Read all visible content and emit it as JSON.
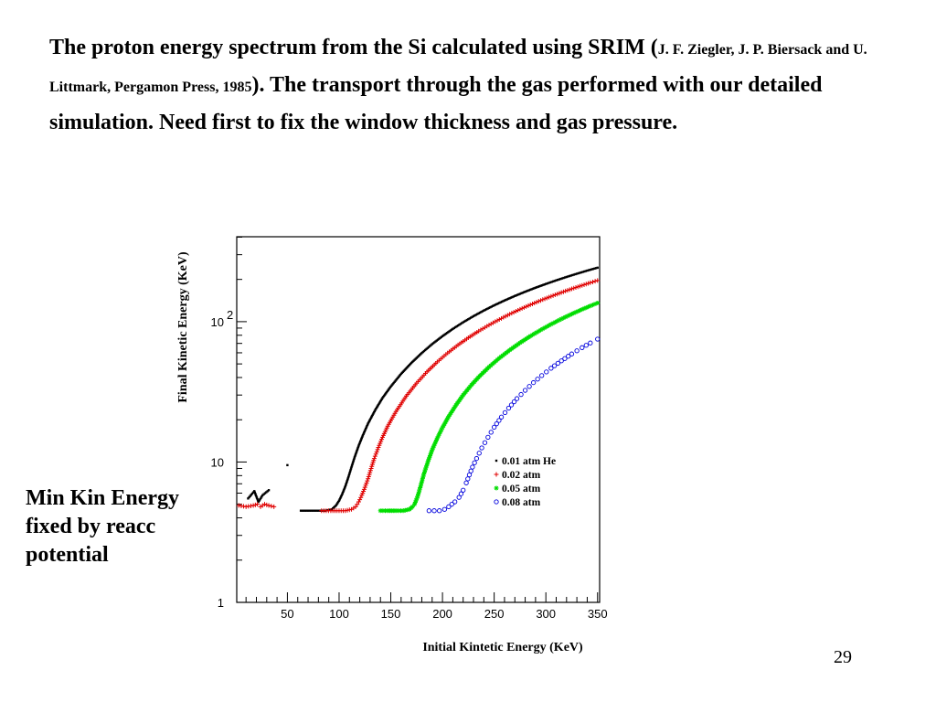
{
  "slide": {
    "title_part1": "The proton energy spectrum from the Si calculated using SRIM (",
    "title_ref": "J. F. Ziegler, J. P. Biersack and U. Littmark, Pergamon Press, 1985",
    "title_part2": "). The transport through the gas performed with our detailed simulation.  Need first to fix the window thickness and gas pressure.",
    "side_note": "Min Kin Energy fixed by reacc potential",
    "page_number": "29"
  },
  "chart_data": {
    "type": "scatter",
    "xlabel": "Initial Kintetic Energy (KeV)",
    "ylabel": "Final Kinetic Energy (KeV)",
    "xlim": [
      0,
      350
    ],
    "ylim": [
      1,
      400
    ],
    "yscale": "log",
    "x_ticks": [
      50,
      100,
      150,
      200,
      250,
      300,
      350
    ],
    "y_ticks": [
      {
        "value": 1,
        "base": "1",
        "exp": ""
      },
      {
        "value": 10,
        "base": "10",
        "exp": ""
      },
      {
        "value": 100,
        "base": "10",
        "exp": "2"
      }
    ],
    "legend_position": "right-center",
    "series": [
      {
        "name": "0.01 atm He",
        "marker": "dot",
        "color": "#000000",
        "points": [
          [
            12,
            5.5
          ],
          [
            18,
            6.2
          ],
          [
            22,
            5.2
          ],
          [
            26,
            5.8
          ],
          [
            32,
            6.3
          ],
          [
            50,
            9.5
          ],
          [
            63,
            4.5
          ],
          [
            70,
            4.5
          ],
          [
            80,
            4.5
          ],
          [
            87,
            4.5
          ],
          [
            93,
            4.6
          ],
          [
            97,
            4.9
          ],
          [
            100,
            5.3
          ],
          [
            103,
            5.9
          ],
          [
            106,
            6.7
          ],
          [
            109,
            7.8
          ],
          [
            112,
            9.2
          ],
          [
            115,
            10.8
          ],
          [
            119,
            13.1
          ],
          [
            123,
            15.5
          ],
          [
            128,
            18.8
          ],
          [
            135,
            23.5
          ],
          [
            142,
            28.6
          ],
          [
            150,
            34.5
          ],
          [
            160,
            42.5
          ],
          [
            170,
            50.9
          ],
          [
            180,
            59.8
          ],
          [
            190,
            69.2
          ],
          [
            200,
            78.8
          ],
          [
            210,
            88.8
          ],
          [
            220,
            99
          ],
          [
            230,
            109.4
          ],
          [
            240,
            120
          ],
          [
            250,
            130.7
          ],
          [
            260,
            141.5
          ],
          [
            270,
            152.4
          ],
          [
            280,
            163.4
          ],
          [
            290,
            174.5
          ],
          [
            300,
            185.6
          ],
          [
            310,
            196.9
          ],
          [
            320,
            208.2
          ],
          [
            330,
            219.5
          ],
          [
            340,
            231
          ],
          [
            350,
            242.4
          ]
        ]
      },
      {
        "name": "0.02 atm",
        "marker": "plus",
        "color": "#e00000",
        "points": [
          [
            3,
            4.9
          ],
          [
            10,
            4.8
          ],
          [
            17,
            4.9
          ],
          [
            21,
            5.0
          ],
          [
            24,
            4.8
          ],
          [
            28,
            5.0
          ],
          [
            32,
            4.9
          ],
          [
            37,
            4.8
          ],
          [
            83,
            4.5
          ],
          [
            92,
            4.5
          ],
          [
            100,
            4.5
          ],
          [
            106,
            4.5
          ],
          [
            112,
            4.6
          ],
          [
            116,
            4.8
          ],
          [
            119,
            5.2
          ],
          [
            122,
            5.8
          ],
          [
            125,
            6.6
          ],
          [
            128,
            7.6
          ],
          [
            131,
            9.0
          ],
          [
            134,
            10.6
          ],
          [
            138,
            12.7
          ],
          [
            142,
            15.0
          ],
          [
            147,
            18.0
          ],
          [
            155,
            22.9
          ],
          [
            165,
            29.5
          ],
          [
            175,
            36.5
          ],
          [
            185,
            43.9
          ],
          [
            195,
            51.7
          ],
          [
            205,
            59.8
          ],
          [
            215,
            68.2
          ],
          [
            225,
            76.8
          ],
          [
            235,
            85.6
          ],
          [
            245,
            94.6
          ],
          [
            255,
            103.7
          ],
          [
            265,
            113
          ],
          [
            275,
            122.4
          ],
          [
            285,
            132
          ],
          [
            295,
            141.6
          ],
          [
            305,
            151.4
          ],
          [
            315,
            161.3
          ],
          [
            325,
            171.2
          ],
          [
            335,
            181.3
          ],
          [
            343,
            189.4
          ],
          [
            350,
            196.5
          ]
        ]
      },
      {
        "name": "0.05 atm",
        "marker": "star",
        "color": "#00dd00",
        "points": [
          [
            140,
            4.5
          ],
          [
            147,
            4.5
          ],
          [
            155,
            4.5
          ],
          [
            162,
            4.5
          ],
          [
            168,
            4.6
          ],
          [
            171,
            4.8
          ],
          [
            173,
            5.0
          ],
          [
            176,
            5.7
          ],
          [
            179,
            6.8
          ],
          [
            182,
            8.2
          ],
          [
            186,
            10.1
          ],
          [
            190,
            12.2
          ],
          [
            195,
            14.8
          ],
          [
            200,
            17.6
          ],
          [
            206,
            21.1
          ],
          [
            213,
            25.4
          ],
          [
            220,
            30.0
          ],
          [
            228,
            35.4
          ],
          [
            236,
            41.0
          ],
          [
            245,
            47.5
          ],
          [
            255,
            55.0
          ],
          [
            265,
            62.7
          ],
          [
            275,
            70.7
          ],
          [
            285,
            78.9
          ],
          [
            295,
            87.2
          ],
          [
            305,
            95.8
          ],
          [
            315,
            104.5
          ],
          [
            325,
            113.3
          ],
          [
            335,
            122.3
          ],
          [
            343,
            129.5
          ],
          [
            350,
            135.9
          ]
        ]
      },
      {
        "name": "0.08 atm",
        "marker": "circle",
        "color": "#0000dd",
        "points": [
          [
            187,
            4.5
          ],
          [
            192,
            4.5
          ],
          [
            197,
            4.5
          ],
          [
            202,
            4.6
          ],
          [
            206,
            4.8
          ],
          [
            209,
            5.0
          ],
          [
            212,
            5.2
          ],
          [
            216,
            5.6
          ],
          [
            220,
            6.3
          ],
          [
            223,
            7.1
          ],
          [
            226,
            8.1
          ],
          [
            229,
            9.2
          ],
          [
            233,
            10.6
          ],
          [
            238,
            12.6
          ],
          [
            244,
            15.0
          ],
          [
            250,
            17.7
          ],
          [
            257,
            20.9
          ],
          [
            264,
            24.2
          ],
          [
            272,
            28.3
          ],
          [
            280,
            32.4
          ],
          [
            288,
            36.8
          ],
          [
            296,
            41.3
          ],
          [
            305,
            46.6
          ],
          [
            315,
            52.6
          ],
          [
            325,
            58.9
          ],
          [
            335,
            65.3
          ],
          [
            343,
            70.5
          ],
          [
            350,
            75.1
          ]
        ]
      }
    ]
  },
  "colors": {
    "axis": "#000000",
    "background": "#ffffff"
  }
}
